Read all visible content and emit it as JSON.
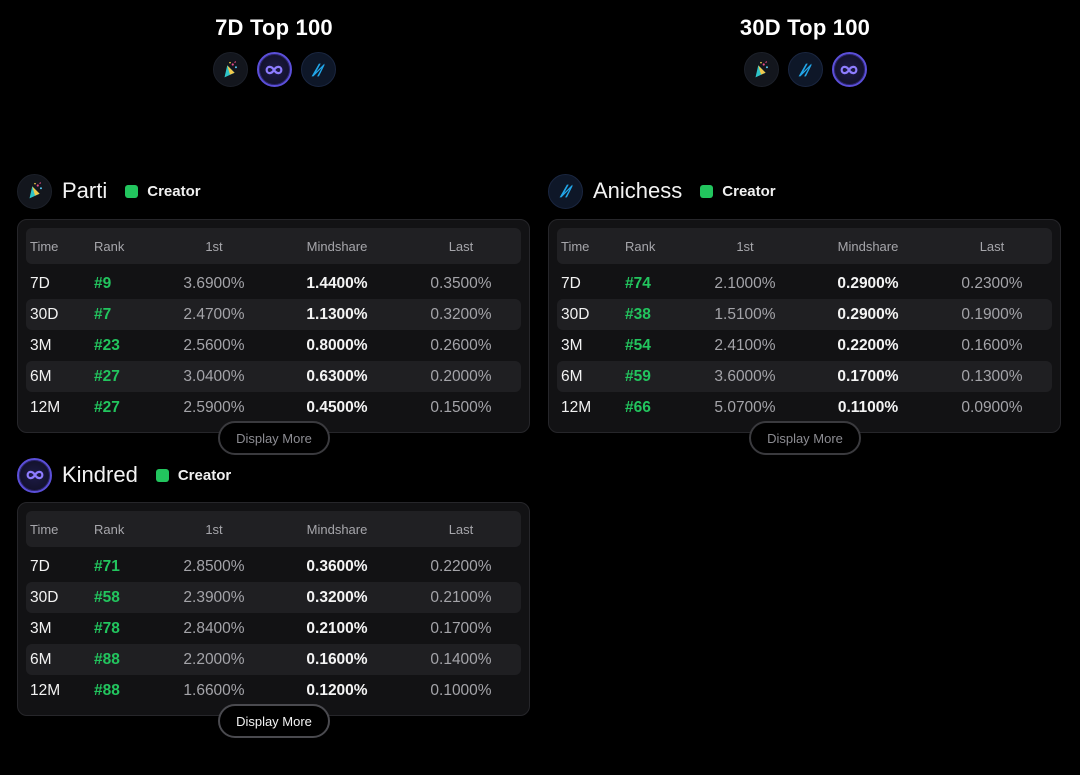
{
  "columns": {
    "left": {
      "title": "7D Top 100",
      "icons": [
        "parti-icon",
        "kindred-icon",
        "anichess-icon"
      ]
    },
    "right": {
      "title": "30D Top 100",
      "icons": [
        "parti-icon",
        "anichess-icon",
        "kindred-icon"
      ]
    }
  },
  "table_headers": {
    "time": "Time",
    "rank": "Rank",
    "first": "1st",
    "mindshare": "Mindshare",
    "last": "Last"
  },
  "colors": {
    "accent_green": "#22c55e",
    "kindred_ring": "#5b4fd9",
    "anichess_blue": "#22a6e8"
  },
  "cards": {
    "parti": {
      "name": "Parti",
      "tag": "Creator",
      "more_label": "Display More",
      "rows": [
        {
          "time": "7D",
          "rank": "#9",
          "first": "3.6900%",
          "mindshare": "1.4400%",
          "last": "0.3500%"
        },
        {
          "time": "30D",
          "rank": "#7",
          "first": "2.4700%",
          "mindshare": "1.1300%",
          "last": "0.3200%"
        },
        {
          "time": "3M",
          "rank": "#23",
          "first": "2.5600%",
          "mindshare": "0.8000%",
          "last": "0.2600%"
        },
        {
          "time": "6M",
          "rank": "#27",
          "first": "3.0400%",
          "mindshare": "0.6300%",
          "last": "0.2000%"
        },
        {
          "time": "12M",
          "rank": "#27",
          "first": "2.5900%",
          "mindshare": "0.4500%",
          "last": "0.1500%"
        }
      ]
    },
    "anichess": {
      "name": "Anichess",
      "tag": "Creator",
      "more_label": "Display More",
      "rows": [
        {
          "time": "7D",
          "rank": "#74",
          "first": "2.1000%",
          "mindshare": "0.2900%",
          "last": "0.2300%"
        },
        {
          "time": "30D",
          "rank": "#38",
          "first": "1.5100%",
          "mindshare": "0.2900%",
          "last": "0.1900%"
        },
        {
          "time": "3M",
          "rank": "#54",
          "first": "2.4100%",
          "mindshare": "0.2200%",
          "last": "0.1600%"
        },
        {
          "time": "6M",
          "rank": "#59",
          "first": "3.6000%",
          "mindshare": "0.1700%",
          "last": "0.1300%"
        },
        {
          "time": "12M",
          "rank": "#66",
          "first": "5.0700%",
          "mindshare": "0.1100%",
          "last": "0.0900%"
        }
      ]
    },
    "kindred": {
      "name": "Kindred",
      "tag": "Creator",
      "more_label": "Display More",
      "rows": [
        {
          "time": "7D",
          "rank": "#71",
          "first": "2.8500%",
          "mindshare": "0.3600%",
          "last": "0.2200%"
        },
        {
          "time": "30D",
          "rank": "#58",
          "first": "2.3900%",
          "mindshare": "0.3200%",
          "last": "0.2100%"
        },
        {
          "time": "3M",
          "rank": "#78",
          "first": "2.8400%",
          "mindshare": "0.2100%",
          "last": "0.1700%"
        },
        {
          "time": "6M",
          "rank": "#88",
          "first": "2.2000%",
          "mindshare": "0.1600%",
          "last": "0.1400%"
        },
        {
          "time": "12M",
          "rank": "#88",
          "first": "1.6600%",
          "mindshare": "0.1200%",
          "last": "0.1000%"
        }
      ]
    }
  }
}
